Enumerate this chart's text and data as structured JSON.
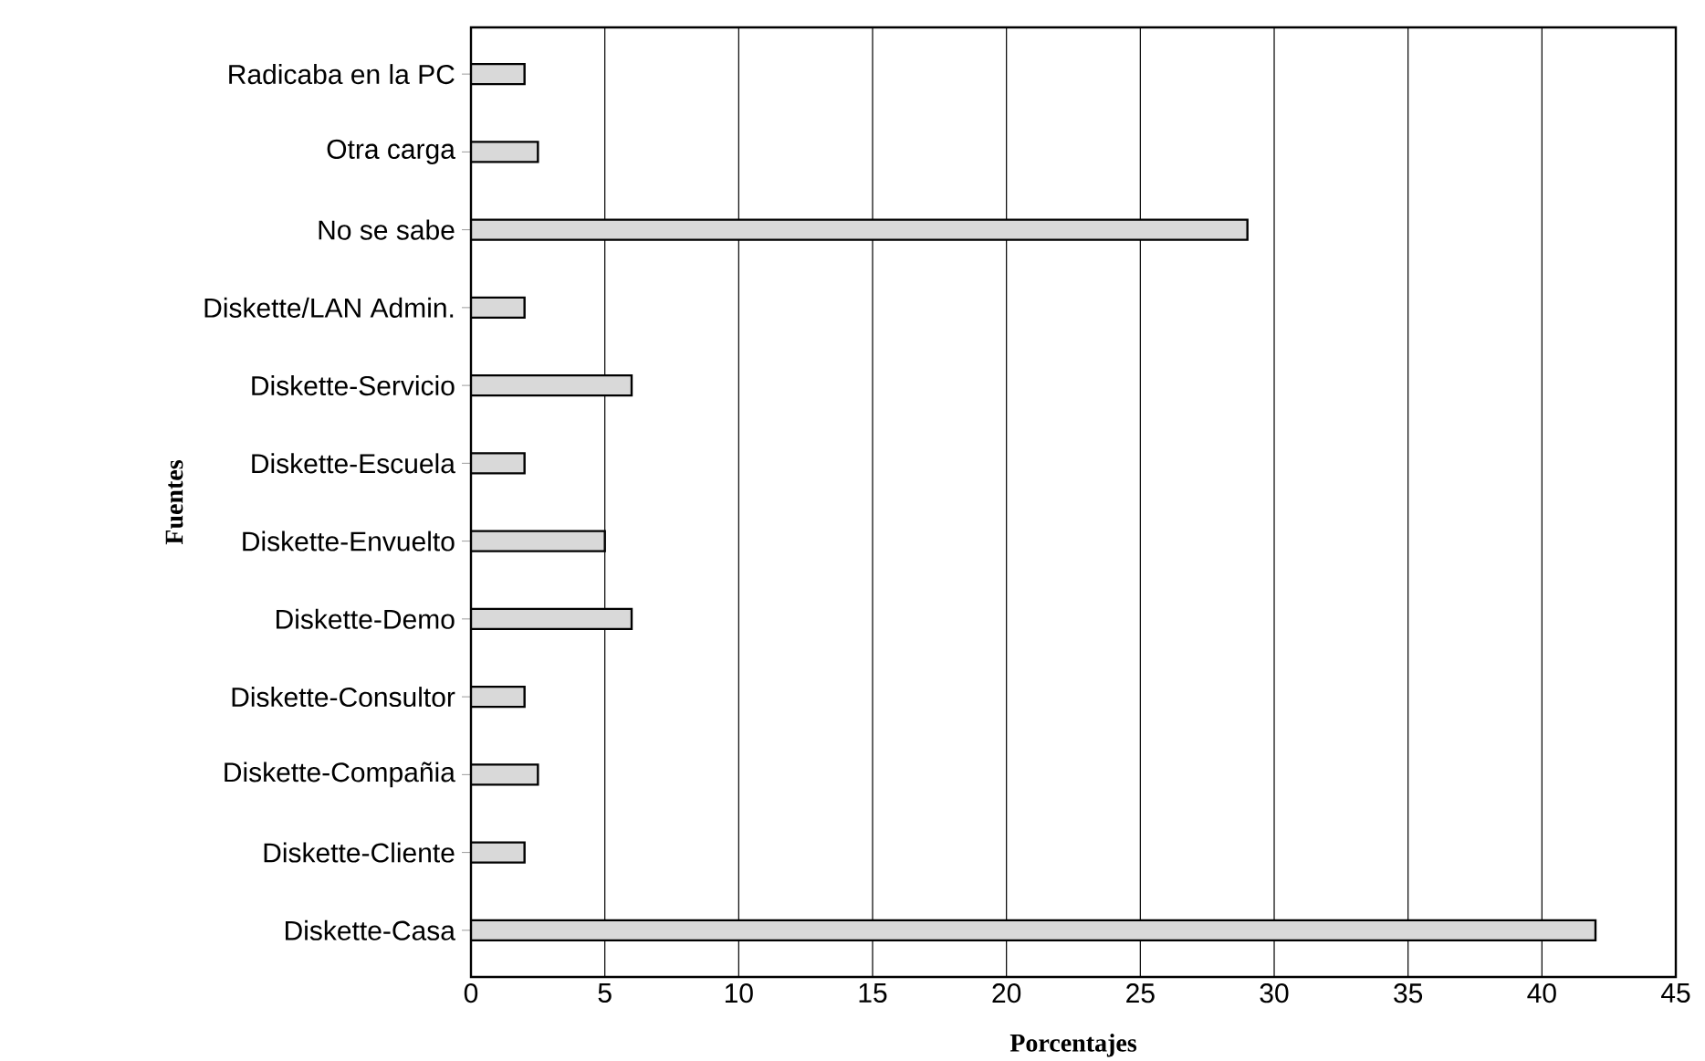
{
  "chart_data": {
    "type": "bar",
    "orientation": "horizontal",
    "xlabel": "Porcentajes",
    "ylabel": "Fuentes",
    "categories": [
      "Radicaba en la PC",
      "Otra carga",
      "No se sabe",
      "Diskette/LAN Admin.",
      "Diskette-Servicio",
      "Diskette-Escuela",
      "Diskette-Envuelto",
      "Diskette-Demo",
      "Diskette-Consultor",
      "Diskette-Compañia",
      "Diskette-Cliente",
      "Diskette-Casa"
    ],
    "values": [
      2,
      2.5,
      29,
      2,
      6,
      2,
      5,
      6,
      2,
      2.5,
      2,
      42
    ],
    "color": "#d9d9d9",
    "xlim": [
      0,
      45
    ],
    "xticks": [
      0,
      5,
      10,
      15,
      20,
      25,
      30,
      35,
      40,
      45
    ],
    "grid": "x"
  }
}
